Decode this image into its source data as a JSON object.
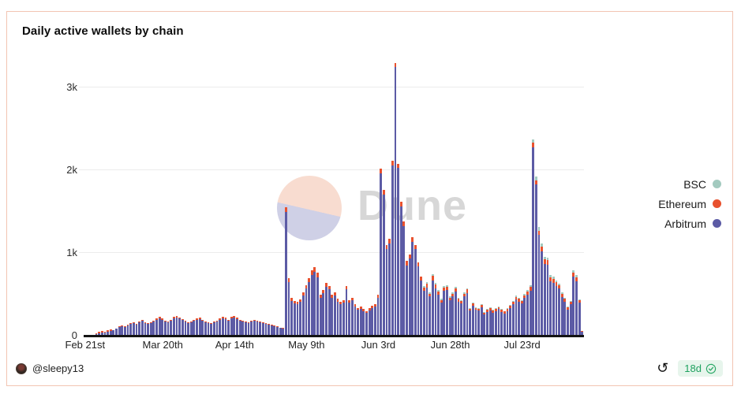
{
  "card": {
    "title": "Daily active wallets by chain"
  },
  "watermark": {
    "brand": "Dune"
  },
  "legend": [
    {
      "label": "BSC",
      "color": "#a3cabf"
    },
    {
      "label": "Ethereum",
      "color": "#e8512e"
    },
    {
      "label": "Arbitrum",
      "color": "#5c5ba5"
    }
  ],
  "footer": {
    "author": "@sleepy13",
    "age_badge": "18d",
    "refresh_icon": "refresh",
    "verified_icon": "check-seal"
  },
  "colors": {
    "arbitrum": "#5c5ba5",
    "ethereum": "#e8512e",
    "bsc": "#a3cabf",
    "grid": "#ececec",
    "axis": "#141414",
    "badge_green": "#2aa866"
  },
  "chart_data": {
    "type": "bar",
    "stacked": true,
    "title": "Daily active wallets by chain",
    "xlabel": "",
    "ylabel": "",
    "grid": "horizontal",
    "legend_position": "right",
    "stack_order_bottom_to_top": [
      "Arbitrum",
      "Ethereum",
      "BSC"
    ],
    "x_unit": "day",
    "x_start_label": "Feb 21st",
    "x_tick_labels": [
      "Feb 21st",
      "Mar 20th",
      "Apr 14th",
      "May 9th",
      "Jun 3rd",
      "Jun 28th",
      "Jul 23rd"
    ],
    "x_tick_indices": [
      0,
      27,
      52,
      77,
      102,
      127,
      152
    ],
    "y_ticks": [
      "0",
      "1k",
      "2k",
      "3k"
    ],
    "y_tick_values": [
      0,
      1000,
      2000,
      3000
    ],
    "ylim": [
      0,
      3381
    ],
    "totals": [
      6,
      8,
      10,
      14,
      30,
      45,
      60,
      50,
      65,
      80,
      70,
      90,
      110,
      125,
      115,
      130,
      150,
      160,
      145,
      175,
      190,
      165,
      150,
      160,
      185,
      210,
      230,
      205,
      185,
      170,
      195,
      230,
      240,
      220,
      200,
      180,
      165,
      175,
      190,
      205,
      215,
      195,
      175,
      160,
      155,
      170,
      185,
      205,
      225,
      215,
      195,
      230,
      235,
      215,
      195,
      180,
      170,
      165,
      185,
      195,
      185,
      170,
      160,
      150,
      140,
      130,
      120,
      110,
      100,
      95,
      1550,
      700,
      455,
      420,
      405,
      440,
      520,
      610,
      700,
      790,
      825,
      760,
      495,
      555,
      635,
      600,
      495,
      525,
      445,
      410,
      430,
      600,
      430,
      460,
      380,
      335,
      350,
      320,
      300,
      330,
      360,
      380,
      495,
      2020,
      1760,
      1100,
      1170,
      2110,
      3300,
      2080,
      1620,
      1380,
      905,
      985,
      1190,
      1100,
      890,
      715,
      600,
      650,
      525,
      745,
      635,
      555,
      445,
      600,
      610,
      475,
      525,
      590,
      460,
      430,
      525,
      575,
      335,
      400,
      345,
      335,
      380,
      285,
      320,
      340,
      310,
      330,
      355,
      320,
      300,
      330,
      370,
      420,
      485,
      460,
      430,
      505,
      550,
      605,
      2370,
      1920,
      1310,
      1110,
      950,
      940,
      730,
      710,
      670,
      630,
      520,
      460,
      350,
      420,
      790,
      730,
      440,
      60
    ],
    "ethereum": [
      4,
      5,
      6,
      8,
      14,
      16,
      18,
      15,
      17,
      19,
      5,
      6,
      8,
      9,
      8,
      9,
      11,
      11,
      10,
      12,
      13,
      12,
      11,
      11,
      13,
      15,
      16,
      14,
      13,
      12,
      14,
      16,
      17,
      15,
      14,
      13,
      12,
      12,
      13,
      14,
      15,
      14,
      12,
      11,
      11,
      12,
      13,
      14,
      16,
      15,
      14,
      16,
      16,
      15,
      14,
      13,
      12,
      12,
      13,
      14,
      13,
      12,
      11,
      11,
      10,
      9,
      8,
      8,
      7,
      7,
      55,
      49,
      32,
      29,
      28,
      31,
      36,
      43,
      49,
      55,
      55,
      53,
      35,
      39,
      44,
      42,
      35,
      37,
      31,
      29,
      30,
      42,
      30,
      32,
      27,
      23,
      25,
      22,
      21,
      23,
      25,
      27,
      35,
      55,
      55,
      55,
      55,
      55,
      55,
      55,
      55,
      55,
      55,
      55,
      55,
      55,
      55,
      50,
      42,
      46,
      37,
      52,
      44,
      39,
      31,
      42,
      43,
      33,
      37,
      41,
      32,
      30,
      37,
      40,
      23,
      28,
      24,
      23,
      27,
      20,
      22,
      24,
      22,
      23,
      25,
      22,
      21,
      23,
      26,
      29,
      34,
      32,
      30,
      35,
      39,
      42,
      55,
      55,
      55,
      55,
      55,
      55,
      51,
      50,
      47,
      44,
      36,
      32,
      25,
      29,
      55,
      51,
      31,
      8
    ],
    "bsc_start_index": 118,
    "bsc_values": [
      18,
      20,
      16,
      22,
      19,
      17,
      13,
      18,
      18,
      14,
      16,
      18,
      14,
      13,
      16,
      17,
      10,
      12,
      10,
      10,
      11,
      9,
      10,
      10,
      9,
      10,
      11,
      10,
      9,
      10,
      11,
      13,
      15,
      14,
      13,
      15,
      17,
      18,
      40,
      40,
      39,
      33,
      29,
      28,
      22,
      21,
      20,
      19,
      16,
      14,
      11,
      13,
      24,
      22,
      13,
      6
    ],
    "note": "arbitrum value per day = totals - ethereum - bsc"
  }
}
